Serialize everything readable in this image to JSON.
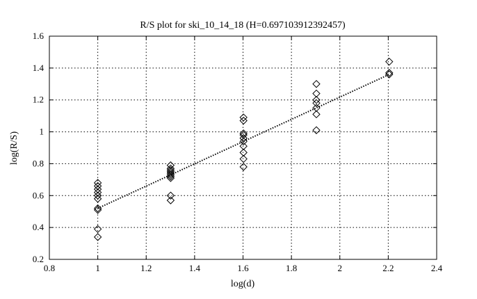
{
  "chart_data": {
    "type": "scatter",
    "title": "R/S plot for ski_10_14_18 (H=0.697103912392457)",
    "xlabel": "log(d)",
    "ylabel": "log(R/S)",
    "xlim": [
      0.8,
      2.4
    ],
    "ylim": [
      0.2,
      1.6
    ],
    "xticks": [
      0.8,
      1,
      1.2,
      1.4,
      1.6,
      1.8,
      2,
      2.2,
      2.4
    ],
    "xtick_labels": [
      "0.8",
      "1",
      "1.2",
      "1.4",
      "1.6",
      "1.8",
      "2",
      "2.2",
      "2.4"
    ],
    "yticks": [
      0.2,
      0.4,
      0.6,
      0.8,
      1,
      1.2,
      1.4,
      1.6
    ],
    "ytick_labels": [
      "0.2",
      "0.4",
      "0.6",
      "0.8",
      "1",
      "1.2",
      "1.4",
      "1.6"
    ],
    "grid": true,
    "marker": "diamond",
    "series": [
      {
        "type": "scatter",
        "points": [
          [
            1,
            0.34
          ],
          [
            1,
            0.39
          ],
          [
            1,
            0.51
          ],
          [
            1,
            0.52
          ],
          [
            1,
            0.58
          ],
          [
            1,
            0.6
          ],
          [
            1,
            0.62
          ],
          [
            1,
            0.64
          ],
          [
            1,
            0.66
          ],
          [
            1,
            0.68
          ],
          [
            1.301,
            0.57
          ],
          [
            1.301,
            0.6
          ],
          [
            1.301,
            0.71
          ],
          [
            1.301,
            0.72
          ],
          [
            1.301,
            0.73
          ],
          [
            1.301,
            0.74
          ],
          [
            1.301,
            0.75
          ],
          [
            1.301,
            0.76
          ],
          [
            1.301,
            0.77
          ],
          [
            1.301,
            0.79
          ],
          [
            1.602,
            0.78
          ],
          [
            1.602,
            0.83
          ],
          [
            1.602,
            0.87
          ],
          [
            1.602,
            0.91
          ],
          [
            1.602,
            0.94
          ],
          [
            1.602,
            0.96
          ],
          [
            1.602,
            0.98
          ],
          [
            1.602,
            0.99
          ],
          [
            1.602,
            1.07
          ],
          [
            1.602,
            1.09
          ],
          [
            1.903,
            1.01
          ],
          [
            1.903,
            1.11
          ],
          [
            1.903,
            1.15
          ],
          [
            1.903,
            1.18
          ],
          [
            1.903,
            1.2
          ],
          [
            1.903,
            1.24
          ],
          [
            1.903,
            1.3
          ],
          [
            2.204,
            1.36
          ],
          [
            2.204,
            1.37
          ],
          [
            2.204,
            1.44
          ]
        ]
      },
      {
        "type": "line",
        "style": "dotted",
        "points": [
          [
            1,
            0.52
          ],
          [
            2.204,
            1.36
          ]
        ]
      }
    ]
  }
}
